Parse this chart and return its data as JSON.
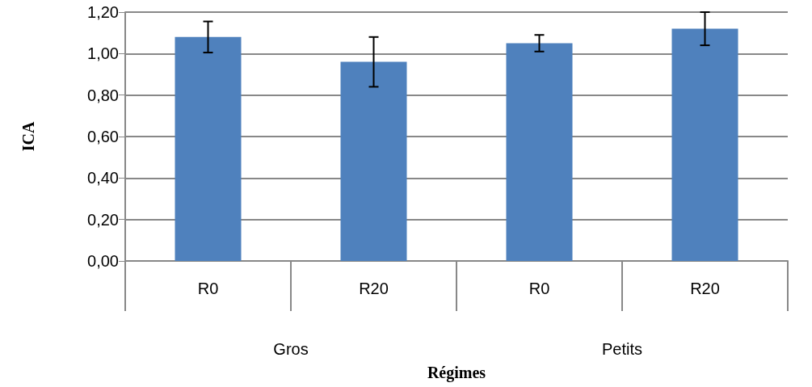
{
  "chart_data": {
    "type": "bar",
    "xlabel": "Régimes",
    "ylabel": "ICA",
    "categories": [
      "R0",
      "R20",
      "R0",
      "R20"
    ],
    "values": [
      1.08,
      0.96,
      1.05,
      1.12
    ],
    "errors": [
      0.075,
      0.12,
      0.04,
      0.08
    ],
    "color": "#4f81bd",
    "ylim": [
      0,
      1.2
    ],
    "yticks": [
      {
        "value": 0,
        "label": "0,00"
      },
      {
        "value": 0.2,
        "label": "0,20"
      },
      {
        "value": 0.4,
        "label": "0,40"
      },
      {
        "value": 0.6,
        "label": "0,60"
      },
      {
        "value": 0.8,
        "label": "0,80"
      },
      {
        "value": 1.0,
        "label": "1,00"
      },
      {
        "value": 1.2,
        "label": "1,20"
      }
    ],
    "grid": "y",
    "annotations": [
      "Gros",
      "Petits"
    ]
  }
}
